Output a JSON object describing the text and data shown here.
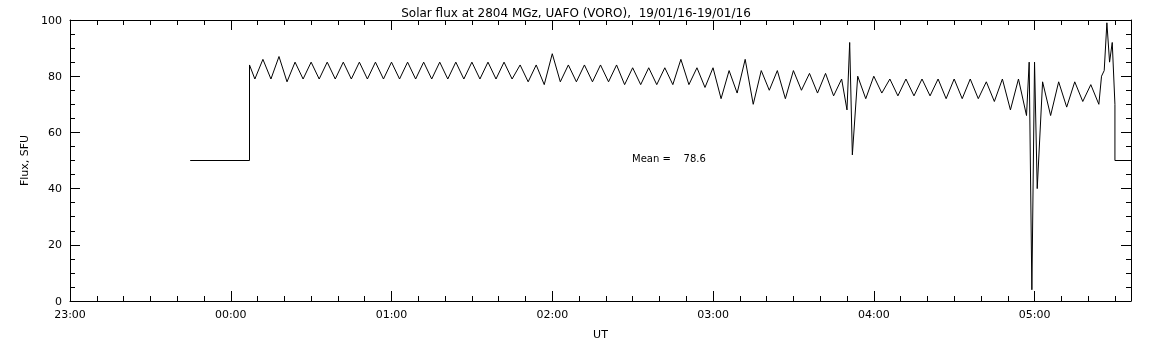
{
  "chart_data": {
    "type": "line",
    "title": "Solar flux at 2804 MGz, UAFO (VORO),  19/01/16-19/01/16",
    "xlabel": "UT",
    "ylabel": "Flux, SFU",
    "xlim": [
      "--01-18T23:00",
      "--01-19T05:36"
    ],
    "xticks": [
      {
        "value": "--01-18T23:00",
        "label": "23:00"
      },
      {
        "value": "--01-19T00:00",
        "label": "00:00"
      },
      {
        "value": "--01-19T01:00",
        "label": "01:00"
      },
      {
        "value": "--01-19T02:00",
        "label": "02:00"
      },
      {
        "value": "--01-19T03:00",
        "label": "03:00"
      },
      {
        "value": "--01-19T04:00",
        "label": "04:00"
      },
      {
        "value": "--01-19T05:00",
        "label": "05:00"
      }
    ],
    "ylim": [
      0,
      100
    ],
    "yticks": [
      0,
      20,
      40,
      60,
      80,
      100
    ],
    "grid": false,
    "marker": "none",
    "line_style": "solid",
    "annotations": [
      "Mean =    78.6"
    ],
    "series": [
      {
        "color": "#000000",
        "x": [
          "--01-18T23:45",
          "--01-19T00:07",
          "--01-19T00:07",
          "--01-19T00:09",
          "--01-19T00:12",
          "--01-19T00:15",
          "--01-19T00:18",
          "--01-19T00:21",
          "--01-19T00:24",
          "--01-19T00:27",
          "--01-19T00:30",
          "--01-19T00:33",
          "--01-19T00:36",
          "--01-19T00:39",
          "--01-19T00:42",
          "--01-19T00:45",
          "--01-19T00:48",
          "--01-19T00:51",
          "--01-19T00:54",
          "--01-19T00:57",
          "--01-19T01:00",
          "--01-19T01:03",
          "--01-19T01:06",
          "--01-19T01:09",
          "--01-19T01:12",
          "--01-19T01:15",
          "--01-19T01:18",
          "--01-19T01:21",
          "--01-19T01:24",
          "--01-19T01:27",
          "--01-19T01:30",
          "--01-19T01:33",
          "--01-19T01:36",
          "--01-19T01:39",
          "--01-19T01:42",
          "--01-19T01:45",
          "--01-19T01:48",
          "--01-19T01:51",
          "--01-19T01:54",
          "--01-19T01:57",
          "--01-19T02:00",
          "--01-19T02:03",
          "--01-19T02:06",
          "--01-19T02:09",
          "--01-19T02:12",
          "--01-19T02:15",
          "--01-19T02:18",
          "--01-19T02:21",
          "--01-19T02:24",
          "--01-19T02:27",
          "--01-19T02:30",
          "--01-19T02:33",
          "--01-19T02:36",
          "--01-19T02:39",
          "--01-19T02:42",
          "--01-19T02:45",
          "--01-19T02:48",
          "--01-19T02:51",
          "--01-19T02:54",
          "--01-19T02:57",
          "--01-19T03:00",
          "--01-19T03:03",
          "--01-19T03:06",
          "--01-19T03:09",
          "--01-19T03:12",
          "--01-19T03:15",
          "--01-19T03:18",
          "--01-19T03:21",
          "--01-19T03:24",
          "--01-19T03:27",
          "--01-19T03:30",
          "--01-19T03:33",
          "--01-19T03:36",
          "--01-19T03:39",
          "--01-19T03:42",
          "--01-19T03:45",
          "--01-19T03:48",
          "--01-19T03:50",
          "--01-19T03:51",
          "--01-19T03:52",
          "--01-19T03:54",
          "--01-19T03:57",
          "--01-19T04:00",
          "--01-19T04:03",
          "--01-19T04:06",
          "--01-19T04:09",
          "--01-19T04:12",
          "--01-19T04:15",
          "--01-19T04:18",
          "--01-19T04:21",
          "--01-19T04:24",
          "--01-19T04:27",
          "--01-19T04:30",
          "--01-19T04:33",
          "--01-19T04:36",
          "--01-19T04:39",
          "--01-19T04:42",
          "--01-19T04:45",
          "--01-19T04:48",
          "--01-19T04:51",
          "--01-19T04:54",
          "--01-19T04:57",
          "--01-19T04:58",
          "--01-19T04:59",
          "--01-19T05:00",
          "--01-19T05:01",
          "--01-19T05:03",
          "--01-19T05:06",
          "--01-19T05:09",
          "--01-19T05:12",
          "--01-19T05:15",
          "--01-19T05:18",
          "--01-19T05:21",
          "--01-19T05:24",
          "--01-19T05:25",
          "--01-19T05:26",
          "--01-19T05:27",
          "--01-19T05:28",
          "--01-19T05:29",
          "--01-19T05:30",
          "--01-19T05:30",
          "--01-19T05:36"
        ],
        "values": [
          50,
          50,
          84,
          79,
          86,
          79,
          87,
          78,
          85,
          79,
          85,
          79,
          85,
          79,
          85,
          79,
          85,
          79,
          85,
          79,
          85,
          79,
          85,
          79,
          85,
          79,
          85,
          79,
          85,
          79,
          85,
          79,
          85,
          79,
          85,
          79,
          84,
          78,
          84,
          77,
          88,
          78,
          84,
          78,
          84,
          78,
          84,
          78,
          84,
          77,
          83,
          77,
          83,
          77,
          83,
          77,
          86,
          77,
          83,
          76,
          83,
          72,
          82,
          74,
          86,
          70,
          82,
          75,
          82,
          72,
          82,
          75,
          81,
          74,
          81,
          73,
          79,
          68,
          92,
          52,
          80,
          72,
          80,
          74,
          79,
          73,
          79,
          73,
          79,
          73,
          79,
          72,
          79,
          72,
          79,
          72,
          78,
          71,
          79,
          68,
          79,
          66,
          85,
          4,
          85,
          40,
          78,
          66,
          78,
          69,
          78,
          71,
          77,
          70,
          80,
          82,
          99,
          85,
          92,
          70,
          50,
          50
        ]
      }
    ]
  }
}
